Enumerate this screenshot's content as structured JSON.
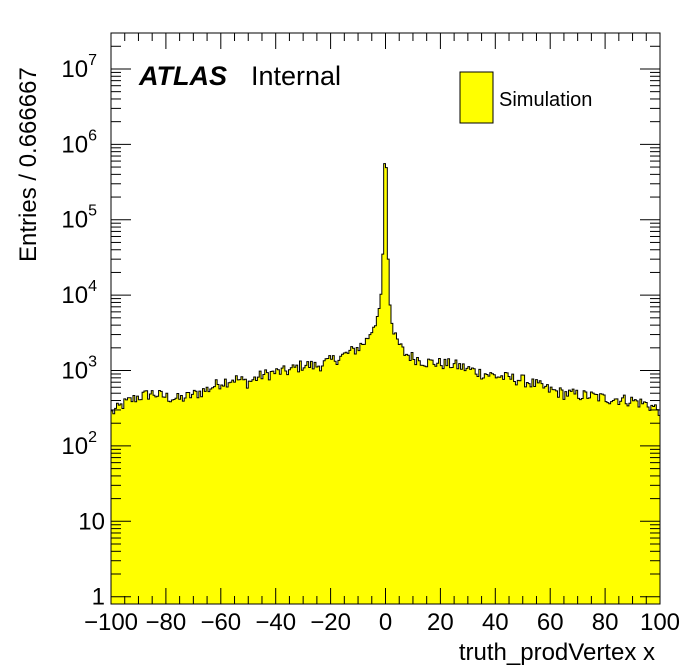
{
  "chart_data": {
    "type": "bar",
    "xlabel": "truth_prodVertex x",
    "ylabel": "Entries / 0.666667",
    "xlim": [
      -100,
      100
    ],
    "ylim": [
      0.8,
      30000000
    ],
    "yscale": "log",
    "bin_width": 0.666667,
    "fill_color": "#ffff00",
    "line_color": "#000000",
    "x_ticks": [
      "−100",
      "−80",
      "−60",
      "−40",
      "−20",
      "0",
      "20",
      "40",
      "60",
      "80",
      "100"
    ],
    "y_tick_values": [
      1,
      10,
      100,
      1000,
      10000,
      100000,
      1000000,
      10000000
    ],
    "atlas_label": "ATLAS",
    "status_label": "Internal",
    "legend": [
      {
        "label": "Simulation",
        "color": "#ffff00"
      }
    ],
    "series": [
      {
        "name": "Simulation",
        "x": [
          -100,
          -95,
          -90,
          -85,
          -80,
          -75,
          -70,
          -65,
          -60,
          -55,
          -50,
          -45,
          -40,
          -35,
          -30,
          -25,
          -20,
          -15,
          -10,
          -7,
          -5,
          -3,
          -2,
          -1.5,
          -1,
          -0.5,
          0,
          0.5,
          1,
          1.5,
          2,
          3,
          5,
          7,
          10,
          15,
          20,
          25,
          30,
          35,
          40,
          45,
          50,
          55,
          60,
          65,
          70,
          75,
          80,
          85,
          90,
          95,
          100
        ],
        "values": [
          270,
          370,
          450,
          500,
          450,
          420,
          480,
          560,
          700,
          780,
          700,
          870,
          950,
          1000,
          1200,
          1150,
          1350,
          1600,
          2000,
          2500,
          3500,
          5200,
          7500,
          12000,
          35000,
          300000,
          1900000,
          250000,
          30000,
          9000,
          5000,
          3000,
          2200,
          1700,
          1500,
          1300,
          1250,
          1200,
          1050,
          930,
          850,
          800,
          750,
          650,
          550,
          500,
          480,
          460,
          430,
          420,
          400,
          360,
          300
        ]
      }
    ]
  }
}
